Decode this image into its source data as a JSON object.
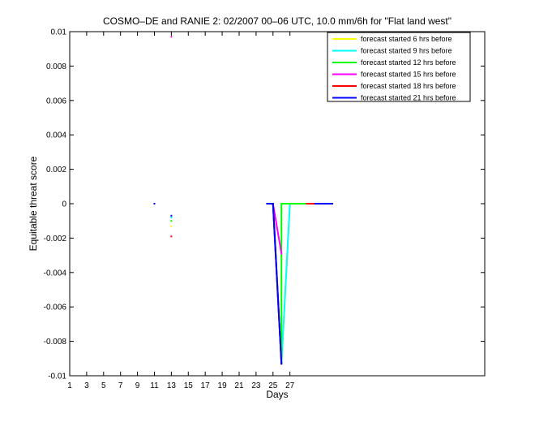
{
  "chart_data": {
    "type": "line",
    "title": "COSMO–DE and RANIE 2: 02/2007 00–06 UTC, 10.0 mm/6h for \"Flat land west\"",
    "xlabel": "Days",
    "ylabel": "Equitable threat score",
    "xlim": [
      1,
      50
    ],
    "ylim": [
      -0.01,
      0.01
    ],
    "xticks": [
      1,
      3,
      5,
      7,
      9,
      11,
      13,
      15,
      17,
      19,
      21,
      23,
      25,
      27
    ],
    "yticks": [
      -0.01,
      -0.008,
      -0.006,
      -0.004,
      -0.002,
      0,
      0.002,
      0.004,
      0.006,
      0.008,
      0.01
    ],
    "ytick_labels": [
      "-0.01",
      "-0.008",
      "-0.006",
      "-0.004",
      "-0.002",
      "0",
      "0.002",
      "0.004",
      "0.006",
      "0.008",
      "0.01"
    ],
    "grid": false,
    "legend_position": "top-right",
    "series": [
      {
        "name": "forecast started 6 hrs before",
        "color": "#ffff00",
        "points": [
          [
            13,
            -0.0013
          ],
          [
            24.3,
            0
          ],
          [
            25,
            0
          ],
          [
            26,
            -0.0093
          ],
          [
            27,
            0
          ],
          [
            29.5,
            0
          ]
        ]
      },
      {
        "name": "forecast started 9 hrs before",
        "color": "#00ffff",
        "points": [
          [
            13,
            -0.0008
          ],
          [
            24.3,
            0
          ],
          [
            25,
            0
          ],
          [
            26,
            -0.0093
          ],
          [
            27,
            0
          ],
          [
            29.5,
            0
          ]
        ]
      },
      {
        "name": "forecast started 12 hrs before",
        "color": "#00ff00",
        "points": [
          [
            13,
            -0.001
          ],
          [
            24.3,
            0
          ],
          [
            25,
            0
          ],
          [
            26,
            -0.0093
          ],
          [
            26,
            0
          ],
          [
            29,
            0
          ]
        ]
      },
      {
        "name": "forecast started 15 hrs before",
        "color": "#ff00ff",
        "points": [
          [
            13,
            0.0097
          ],
          [
            25,
            0
          ],
          [
            26,
            -0.0029
          ]
        ]
      },
      {
        "name": "forecast started 18 hrs before",
        "color": "#ff0000",
        "points": [
          [
            13,
            -0.0019
          ],
          [
            24.3,
            0
          ],
          [
            25,
            0
          ],
          [
            26,
            -0.0093
          ],
          [
            29,
            0
          ],
          [
            31,
            0
          ]
        ]
      },
      {
        "name": "forecast started 21 hrs before",
        "color": "#0000ff",
        "points": [
          [
            11,
            0
          ],
          [
            13,
            -0.0007
          ],
          [
            24.3,
            0
          ],
          [
            25,
            0
          ],
          [
            26,
            -0.0093
          ],
          [
            30,
            0
          ],
          [
            32,
            0
          ]
        ]
      }
    ]
  }
}
